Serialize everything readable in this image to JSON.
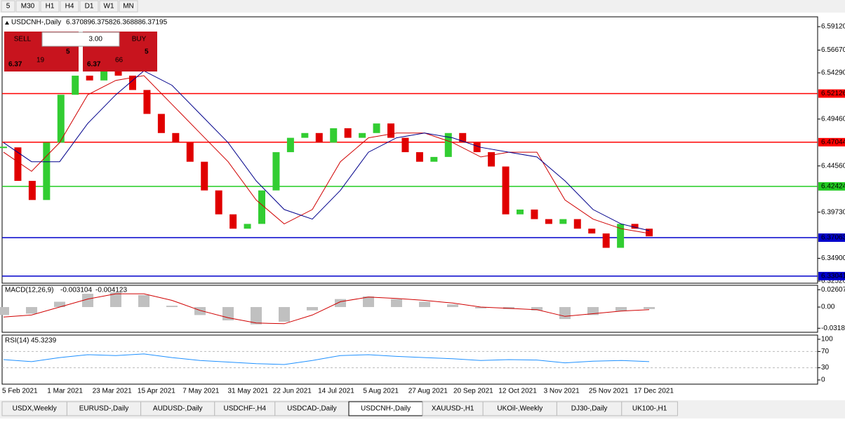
{
  "toolbar": {
    "timeframes": [
      "5",
      "M30",
      "H1",
      "H4",
      "D1",
      "W1",
      "MN"
    ]
  },
  "chart": {
    "symbol": "USDCNH-,Daily",
    "ohlc": [
      6.37089,
      6.37582,
      6.36888,
      6.37195
    ],
    "ylim": [
      6.323,
      6.6015
    ],
    "yticks": [
      {
        "value": 6.5912,
        "label": "6.59120"
      },
      {
        "value": 6.5667,
        "label": "6.56670"
      },
      {
        "value": 6.5429,
        "label": "6.54290"
      },
      {
        "value": 6.4946,
        "label": "6.49460"
      },
      {
        "value": 6.4456,
        "label": "6.44560"
      },
      {
        "value": 6.3973,
        "label": "6.39730"
      },
      {
        "value": 6.349,
        "label": "6.34900"
      },
      {
        "value": 6.3252,
        "label": "6.32520"
      }
    ],
    "levels": [
      {
        "value": 6.52126,
        "color": "#ff0000"
      },
      {
        "value": 6.47044,
        "color": "#ff0000"
      },
      {
        "value": 6.42424,
        "color": "#22cc22"
      },
      {
        "value": 6.37063,
        "color": "#0000cc"
      },
      {
        "value": 6.33041,
        "color": "#0000cc"
      }
    ],
    "closes": [
      6.465,
      6.43,
      6.41,
      6.47,
      6.52,
      6.54,
      6.535,
      6.545,
      6.54,
      6.525,
      6.5,
      6.48,
      6.47,
      6.45,
      6.42,
      6.395,
      6.38,
      6.385,
      6.42,
      6.46,
      6.475,
      6.48,
      6.47,
      6.485,
      6.475,
      6.48,
      6.49,
      6.475,
      6.46,
      6.45,
      6.455,
      6.48,
      6.47,
      6.46,
      6.445,
      6.395,
      6.4,
      6.39,
      6.385,
      6.39,
      6.38,
      6.375,
      6.36,
      6.385,
      6.38,
      6.372
    ],
    "ma_fast": [
      6.46,
      6.44,
      6.47,
      6.52,
      6.535,
      6.54,
      6.51,
      6.48,
      6.45,
      6.41,
      6.385,
      6.4,
      6.45,
      6.475,
      6.48,
      6.48,
      6.47,
      6.455,
      6.46,
      6.46,
      6.41,
      6.39,
      6.38,
      6.375
    ],
    "ma_slow": [
      6.47,
      6.45,
      6.45,
      6.49,
      6.52,
      6.545,
      6.53,
      6.5,
      6.47,
      6.43,
      6.4,
      6.39,
      6.42,
      6.46,
      6.475,
      6.48,
      6.475,
      6.465,
      6.46,
      6.455,
      6.43,
      6.4,
      6.385,
      6.378
    ],
    "dates": [
      "5 Feb 2021",
      "1 Mar 2021",
      "23 Mar 2021",
      "15 Apr 2021",
      "7 May 2021",
      "31 May 2021",
      "22 Jun 2021",
      "14 Jul 2021",
      "5 Aug 2021",
      "27 Aug 2021",
      "20 Sep 2021",
      "12 Oct 2021",
      "3 Nov 2021",
      "25 Nov 2021",
      "17 Dec 2021"
    ]
  },
  "trade": {
    "sell": "SELL",
    "buy": "BUY",
    "lots": "3.00",
    "sell_price": [
      "6.37",
      "19",
      "5"
    ],
    "buy_price": [
      "6.37",
      "66",
      "5"
    ]
  },
  "macd": {
    "label": "MACD(12,26,9)",
    "values": [
      -0.003104,
      -0.004123
    ],
    "ylim": [
      -0.0379,
      0.0327
    ],
    "yticks": [
      0.02607,
      {
        "value": 0,
        "label": "0.00"
      },
      -0.03187
    ],
    "hist": [
      -0.012,
      -0.01,
      0.008,
      0.02,
      0.022,
      0.018,
      0.002,
      -0.012,
      -0.02,
      -0.026,
      -0.022,
      -0.005,
      0.012,
      0.016,
      0.012,
      0.008,
      0.004,
      -0.002,
      -0.003,
      -0.005,
      -0.018,
      -0.012,
      -0.006,
      -0.003
    ],
    "signal": [
      -0.015,
      -0.012,
      0,
      0.012,
      0.02,
      0.02,
      0.01,
      -0.005,
      -0.016,
      -0.024,
      -0.025,
      -0.012,
      0.008,
      0.015,
      0.013,
      0.01,
      0.006,
      0,
      -0.002,
      -0.004,
      -0.014,
      -0.01,
      -0.006,
      -0.004
    ]
  },
  "rsi": {
    "label": "RSI(14)",
    "value": 45.3239,
    "ylim": [
      -10.3,
      110.3
    ],
    "yticks": [
      100,
      70,
      30,
      0
    ],
    "values": [
      50,
      45,
      55,
      62,
      60,
      64,
      55,
      48,
      44,
      40,
      38,
      48,
      60,
      62,
      58,
      55,
      52,
      48,
      50,
      49,
      42,
      46,
      48,
      45
    ]
  },
  "tabs": [
    "USDX,Weekly",
    "EURUSD-,Daily",
    "AUDUSD-,Daily",
    "USDCHF-,H4",
    "USDCAD-,Daily",
    "USDCNH-,Daily",
    "XAUUSD-,H1",
    "UKOil-,Weekly",
    "DJ30-,Daily",
    "UK100-,H1"
  ]
}
